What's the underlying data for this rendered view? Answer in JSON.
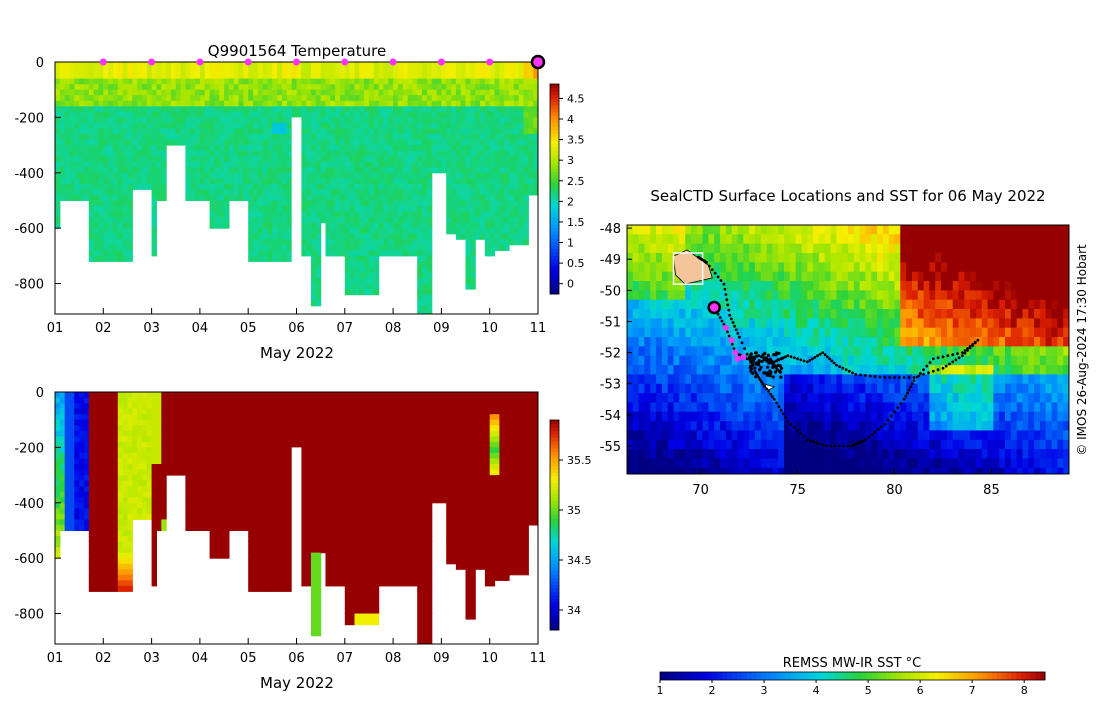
{
  "chart_data": [
    {
      "type": "heatmap",
      "title": "Q9901564  Temperature",
      "xlabel": "May 2022",
      "ylabel": "",
      "x_ticks": [
        "01",
        "02",
        "03",
        "04",
        "05",
        "06",
        "07",
        "08",
        "09",
        "10",
        "11"
      ],
      "y_ticks": [
        0,
        -200,
        -400,
        -600,
        -800
      ],
      "ylim": [
        -910,
        0
      ],
      "colorbar": {
        "min": -0.25,
        "max": 4.85,
        "ticks": [
          0,
          0.5,
          1,
          1.5,
          2,
          2.5,
          3,
          3.5,
          4,
          4.5
        ],
        "tick_labels": [
          "0",
          "0.5",
          "1",
          "1.5",
          "2",
          "2.5",
          "3",
          "3.5",
          "4",
          "4.5"
        ]
      },
      "profile_markers_day": [
        2,
        3,
        4,
        5,
        6,
        7,
        8,
        9,
        10,
        11
      ],
      "profile_bottoms": [
        {
          "x": 1.0,
          "depth": -600
        },
        {
          "x": 1.2,
          "depth": -500
        },
        {
          "x": 2.3,
          "depth": -720
        },
        {
          "x": 2.95,
          "depth": -460
        },
        {
          "x": 3.1,
          "depth": -700
        },
        {
          "x": 3.2,
          "depth": -500
        },
        {
          "x": 3.45,
          "depth": -300
        },
        {
          "x": 3.95,
          "depth": -500
        },
        {
          "x": 4.45,
          "depth": -600
        },
        {
          "x": 4.7,
          "depth": -500
        },
        {
          "x": 5.2,
          "depth": -720
        },
        {
          "x": 5.9,
          "depth": -720
        },
        {
          "x": 5.9,
          "depth": -200
        },
        {
          "x": 6.1,
          "depth": -690
        },
        {
          "x": 6.4,
          "depth": -870
        },
        {
          "x": 6.55,
          "depth": -570
        },
        {
          "x": 6.7,
          "depth": -700
        },
        {
          "x": 7.2,
          "depth": -840
        },
        {
          "x": 8.2,
          "depth": -700
        },
        {
          "x": 8.75,
          "depth": -910
        },
        {
          "x": 8.9,
          "depth": -400
        },
        {
          "x": 9.2,
          "depth": -620
        },
        {
          "x": 9.45,
          "depth": -640
        },
        {
          "x": 9.6,
          "depth": -820
        },
        {
          "x": 9.8,
          "depth": -640
        },
        {
          "x": 10.0,
          "depth": -690
        },
        {
          "x": 10.2,
          "depth": -670
        },
        {
          "x": 10.65,
          "depth": -660
        },
        {
          "x": 10.95,
          "depth": -470
        }
      ]
    },
    {
      "type": "heatmap",
      "title": "",
      "xlabel": "May 2022",
      "ylabel": "",
      "x_ticks": [
        "01",
        "02",
        "03",
        "04",
        "05",
        "06",
        "07",
        "08",
        "09",
        "10",
        "11"
      ],
      "y_ticks": [
        0,
        -200,
        -400,
        -600,
        -800
      ],
      "ylim": [
        -910,
        0
      ],
      "colorbar": {
        "min": 33.8,
        "max": 35.9,
        "ticks": [
          34,
          34.5,
          35,
          35.5
        ],
        "tick_labels": [
          "34",
          "34.5",
          "35",
          "35.5"
        ]
      }
    },
    {
      "type": "heatmap",
      "title": "SealCTD Surface Locations and SST for 06 May 2022",
      "xlabel": "",
      "ylabel": "",
      "x_ticks": [
        70,
        75,
        80,
        85
      ],
      "y_ticks": [
        -48,
        -49,
        -50,
        -51,
        -52,
        -53,
        -54,
        -55
      ],
      "xlim": [
        66.2,
        89.0
      ],
      "ylim": [
        -55.9,
        -47.9
      ],
      "colorbar": {
        "label": "REMSS MW-IR SST °C",
        "min": 1,
        "max": 8.4,
        "ticks": [
          1,
          2,
          3,
          4,
          5,
          6,
          7,
          8
        ],
        "tick_labels": [
          "1",
          "2",
          "3",
          "4",
          "5",
          "6",
          "7",
          "8"
        ]
      },
      "current_position": {
        "lon": 70.7,
        "lat": -50.55
      },
      "recent_positions": [
        {
          "lon": 71.3,
          "lat": -51.2
        },
        {
          "lon": 71.6,
          "lat": -51.6
        },
        {
          "lon": 71.8,
          "lat": -52.0
        },
        {
          "lon": 71.9,
          "lat": -52.2
        },
        {
          "lon": 72.2,
          "lat": -52.15
        }
      ],
      "credit": "© IMOS 26-Aug-2024 17:30 Hobart"
    }
  ]
}
